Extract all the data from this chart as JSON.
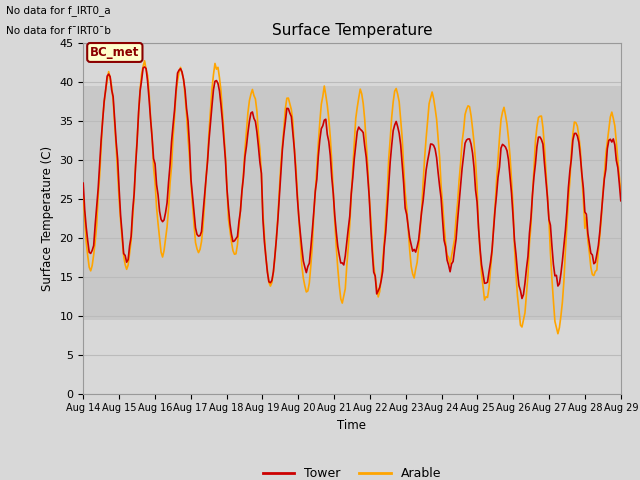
{
  "title": "Surface Temperature",
  "ylabel": "Surface Temperature (C)",
  "xlabel": "Time",
  "annotation_line1": "No data for f_IRT0_a",
  "annotation_line2": "No data for f¯IRT0¯b",
  "legend_label": "BC_met",
  "legend_bg": "#FFFFCC",
  "legend_border": "#8B0000",
  "line1_label": "Tower",
  "line2_label": "Arable",
  "line1_color": "#CC0000",
  "line2_color": "#FFA500",
  "fig_bg_color": "#D8D8D8",
  "plot_bg_color": "#D8D8D8",
  "ylim": [
    0,
    45
  ],
  "yticks": [
    0,
    5,
    10,
    15,
    20,
    25,
    30,
    35,
    40,
    45
  ],
  "x_tick_labels": [
    "Aug 14",
    "Aug 15",
    "Aug 16",
    "Aug 17",
    "Aug 18",
    "Aug 19",
    "Aug 20",
    "Aug 21",
    "Aug 22",
    "Aug 23",
    "Aug 24",
    "Aug 25",
    "Aug 26",
    "Aug 27",
    "Aug 28",
    "Aug 29"
  ],
  "grid_color": "#BBBBBB",
  "shaded_band_min": 9.5,
  "shaded_band_max": 39.5,
  "shaded_band_color": "#C8C8C8",
  "tower_peaks": [
    41,
    42,
    42,
    40,
    36,
    37,
    35,
    34.5,
    35,
    32,
    33,
    32.5,
    33,
    33.5,
    33
  ],
  "tower_mins": [
    18,
    17,
    22,
    20,
    19.5,
    14,
    16,
    16.5,
    13,
    18,
    16,
    14,
    12.5,
    14,
    17
  ],
  "arable_peaks": [
    41,
    42.5,
    42,
    42.5,
    39,
    38,
    39,
    39,
    39,
    38.5,
    37,
    36.5,
    36,
    35,
    35.5
  ],
  "arable_mins": [
    16,
    16,
    18,
    18,
    18,
    14,
    13,
    12,
    13,
    15,
    17,
    12,
    8.5,
    8,
    15
  ]
}
